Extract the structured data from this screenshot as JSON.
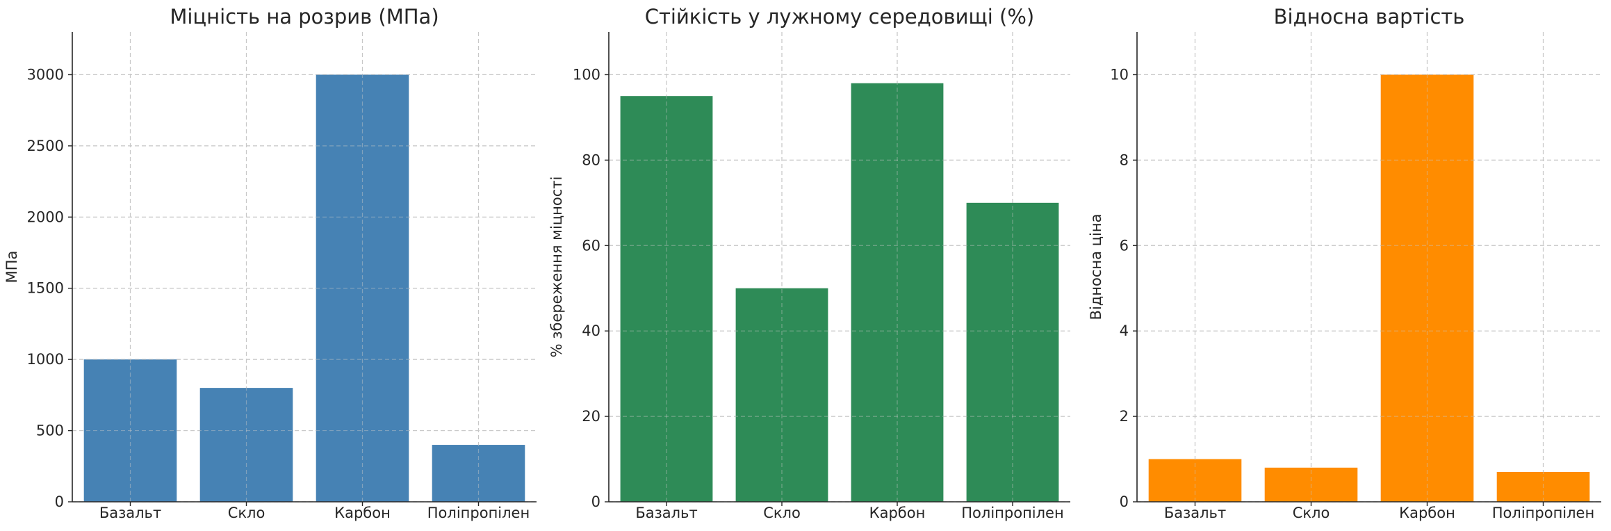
{
  "chart_data": [
    {
      "type": "bar",
      "title": "Міцність на розрив (МПа)",
      "ylabel": "МПа",
      "xlabel": "",
      "categories": [
        "Базальт",
        "Скло",
        "Карбон",
        "Поліпропілен"
      ],
      "values": [
        1000,
        800,
        3000,
        400
      ],
      "ylim": [
        0,
        3300
      ],
      "yticks": [
        0,
        500,
        1000,
        1500,
        2000,
        2500,
        3000
      ],
      "color": "#4682b4",
      "grid": true
    },
    {
      "type": "bar",
      "title": "Стійкість у лужному середовищі (%)",
      "ylabel": "% збереження міцності",
      "xlabel": "",
      "categories": [
        "Базальт",
        "Скло",
        "Карбон",
        "Поліпропілен"
      ],
      "values": [
        95,
        50,
        98,
        70
      ],
      "ylim": [
        0,
        110
      ],
      "yticks": [
        0,
        20,
        40,
        60,
        80,
        100
      ],
      "color": "#2e8b57",
      "grid": true
    },
    {
      "type": "bar",
      "title": "Відносна вартість",
      "ylabel": "Відносна ціна",
      "xlabel": "",
      "categories": [
        "Базальт",
        "Скло",
        "Карбон",
        "Поліпропілен"
      ],
      "values": [
        1.0,
        0.8,
        10.0,
        0.7
      ],
      "ylim": [
        0,
        11
      ],
      "yticks": [
        0,
        2,
        4,
        6,
        8,
        10
      ],
      "color": "#ff8c00",
      "grid": true
    }
  ]
}
